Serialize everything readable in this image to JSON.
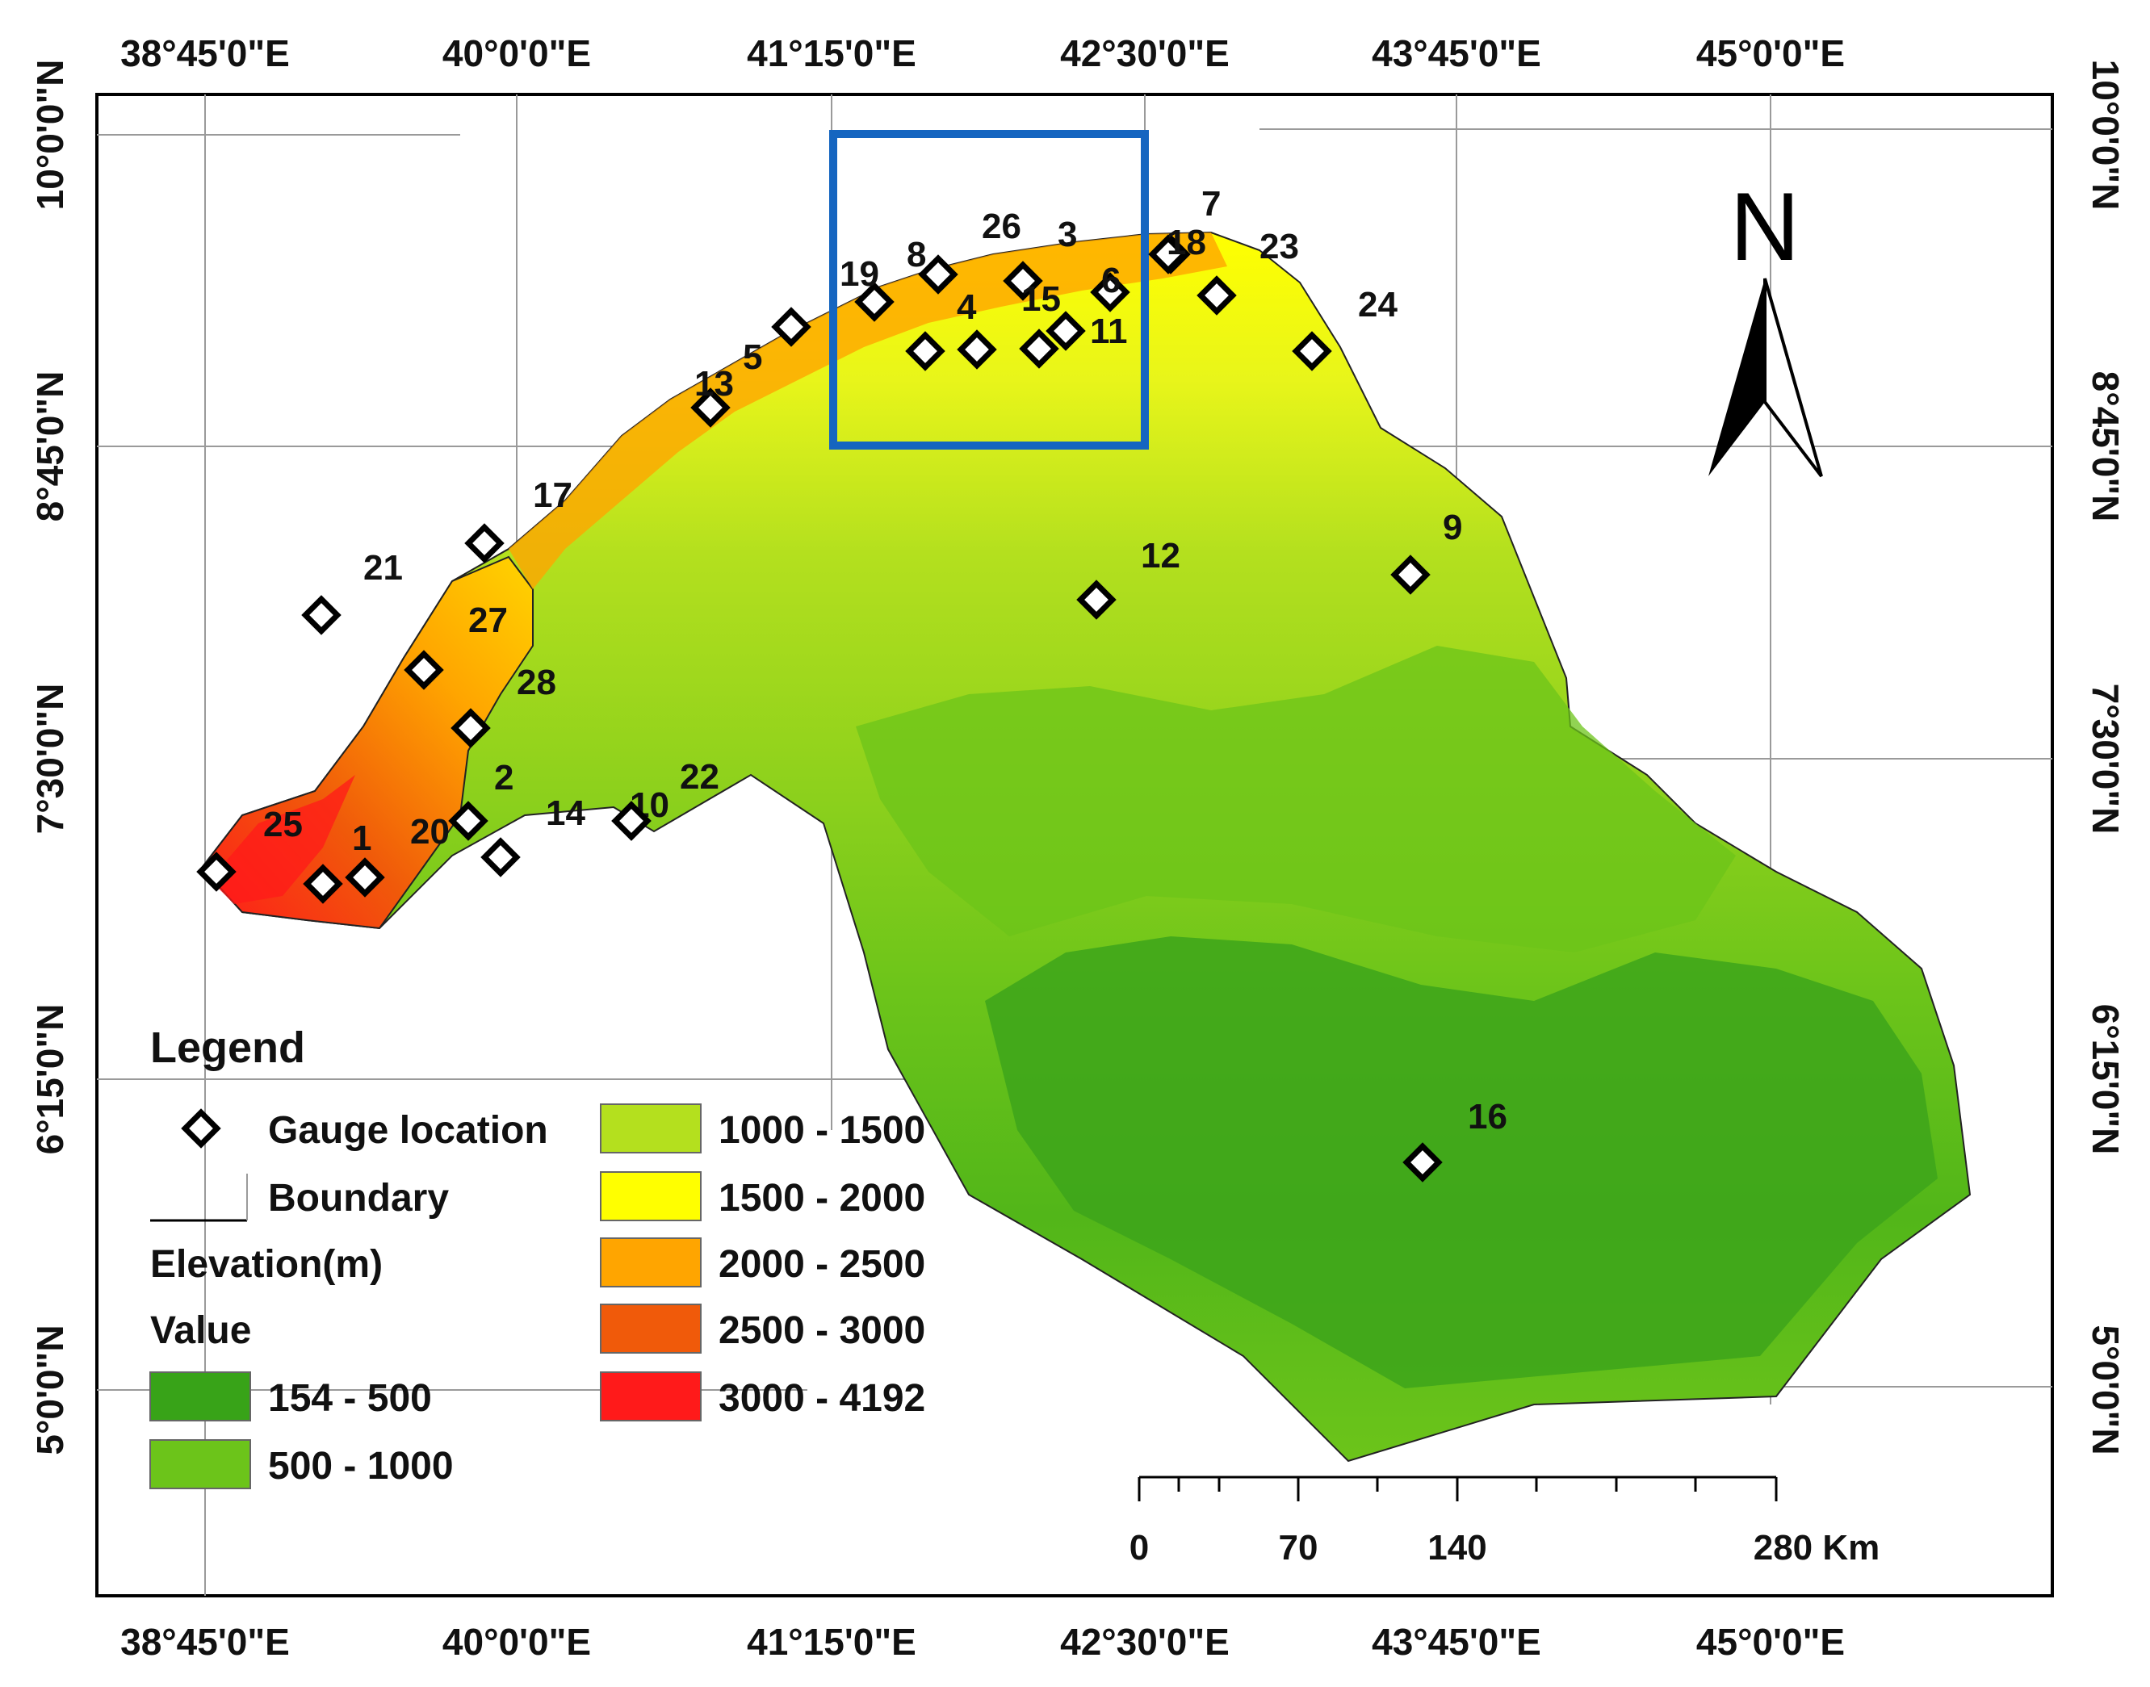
{
  "coordinates": {
    "top": [
      "38°45'0\"E",
      "40°0'0\"E",
      "41°15'0\"E",
      "42°30'0\"E",
      "43°45'0\"E",
      "45°0'0\"E"
    ],
    "bottom": [
      "38°45'0\"E",
      "40°0'0\"E",
      "41°15'0\"E",
      "42°30'0\"E",
      "43°45'0\"E",
      "45°0'0\"E"
    ],
    "left": [
      "10°0'0\"N",
      "8°45'0\"N",
      "7°30'0\"N",
      "6°15'0\"N",
      "5°0'0\"N"
    ],
    "right": [
      "10°0'0\"N",
      "8°45'0\"N",
      "7°30'0\"N",
      "6°15'0\"N",
      "5°0'0\"N"
    ]
  },
  "north_arrow": {
    "letter": "N"
  },
  "gauges": [
    {
      "label": "1"
    },
    {
      "label": "2"
    },
    {
      "label": "3"
    },
    {
      "label": "4"
    },
    {
      "label": "5"
    },
    {
      "label": "6"
    },
    {
      "label": "7"
    },
    {
      "label": "8"
    },
    {
      "label": "9"
    },
    {
      "label": "10"
    },
    {
      "label": "11"
    },
    {
      "label": "12"
    },
    {
      "label": "13"
    },
    {
      "label": "14"
    },
    {
      "label": "15"
    },
    {
      "label": "16"
    },
    {
      "label": "17"
    },
    {
      "label": "18"
    },
    {
      "label": "19"
    },
    {
      "label": "20"
    },
    {
      "label": "21"
    },
    {
      "label": "22"
    },
    {
      "label": "23"
    },
    {
      "label": "24"
    },
    {
      "label": "25"
    },
    {
      "label": "26"
    },
    {
      "label": "27"
    },
    {
      "label": "28"
    }
  ],
  "legend": {
    "title": "Legend",
    "gauge_label": "Gauge location",
    "boundary_label": "Boundary",
    "elevation_title": "Elevation(m)",
    "value_title": "Value",
    "classes": [
      {
        "label": "154 - 500",
        "color": "#38a318"
      },
      {
        "label": "500 - 1000",
        "color": "#6cc41a"
      },
      {
        "label": "1000 - 1500",
        "color": "#b4e01e"
      },
      {
        "label": "1500 - 2000",
        "color": "#ffff00"
      },
      {
        "label": "2000 - 2500",
        "color": "#ffa500"
      },
      {
        "label": "2500 - 3000",
        "color": "#f05a0a"
      },
      {
        "label": "3000 - 4192",
        "color": "#ff1a1a"
      }
    ]
  },
  "scale_bar": {
    "labels": [
      "0",
      "70",
      "140",
      "280 Km"
    ]
  },
  "colors": {
    "study_box": "#1565c0",
    "frame": "#000000"
  }
}
